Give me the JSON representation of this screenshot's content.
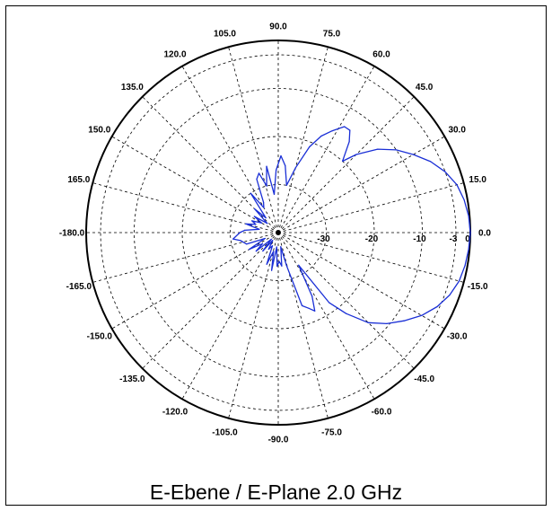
{
  "chart_data": {
    "type": "polar",
    "title": "E-Ebene / E-Plane 2.0 GHz",
    "angle_unit": "deg",
    "radial_unit": "dB",
    "radial_range": [
      -40,
      0
    ],
    "radial_ticks": [
      -30,
      -20,
      -10,
      -3,
      0
    ],
    "radial_tick_labels": [
      "-30",
      "-20",
      "-10",
      "-3",
      "0"
    ],
    "angular_ticks": [
      -180,
      -165,
      -150,
      -135,
      -120,
      -105,
      -90,
      -75,
      -60,
      -45,
      -30,
      -15,
      0,
      15,
      30,
      45,
      60,
      75,
      90,
      105,
      120,
      135,
      150,
      165
    ],
    "angular_tick_labels": [
      "-180.0",
      "-165.0",
      "-150.0",
      "-135.0",
      "-120.0",
      "-105.0",
      "-90.0",
      "-75.0",
      "-60.0",
      "-45.0",
      "-30.0",
      "-15.0",
      "0.0",
      "15.0",
      "30.0",
      "45.0",
      "60.0",
      "75.0",
      "90.0",
      "105.0",
      "120.0",
      "135.0",
      "150.0",
      "165.0"
    ],
    "grid": true,
    "series_color": "#1a2fd6",
    "series": [
      {
        "angles": [
          -180,
          -172,
          -168,
          -160,
          -156,
          -150,
          -145,
          -140,
          -136,
          -130,
          -126,
          -120,
          -114,
          -110,
          -104,
          -100,
          -96,
          -92,
          -88,
          -84,
          -80,
          -76,
          -72,
          -68,
          -65,
          -62,
          -58,
          -54,
          -50,
          -45,
          -40,
          -35,
          -30,
          -25,
          -20,
          -15,
          -10,
          -5,
          0,
          5,
          10,
          15,
          20,
          25,
          30,
          35,
          40,
          45,
          48,
          52,
          55,
          58,
          62,
          66,
          70,
          75,
          80,
          84,
          88,
          92,
          96,
          100,
          104,
          108,
          112,
          116,
          120,
          125,
          130,
          135,
          140,
          146,
          150,
          156,
          160,
          165,
          170,
          176,
          180
        ],
        "values": [
          -32,
          -30.5,
          -32,
          -33,
          -37,
          -33,
          -36,
          -34,
          -38,
          -35,
          -38,
          -36,
          -37,
          -33,
          -36,
          -32,
          -37,
          -33,
          -34,
          -33,
          -37,
          -33,
          -24,
          -23,
          -22,
          -25,
          -32,
          -22,
          -18,
          -13.5,
          -10.5,
          -8,
          -5.5,
          -3.5,
          -2,
          -1,
          -0.5,
          -0.2,
          0,
          -0.2,
          -0.7,
          -1.5,
          -3,
          -5,
          -7.5,
          -10,
          -13,
          -17,
          -20,
          -16,
          -14,
          -14,
          -16,
          -18,
          -21,
          -26,
          -30,
          -26,
          -24,
          -27,
          -32,
          -26,
          -30,
          -27,
          -28,
          -33,
          -34,
          -30,
          -36,
          -33,
          -37,
          -34,
          -36,
          -34,
          -35,
          -33,
          -36,
          -33,
          -32
        ]
      }
    ]
  }
}
